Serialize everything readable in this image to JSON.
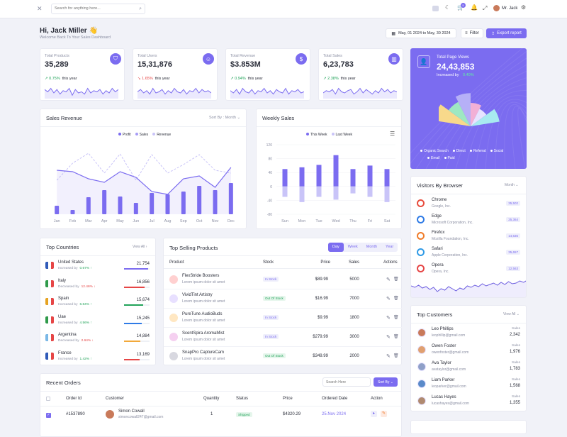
{
  "header": {
    "search_placeholder": "Search for anything here...",
    "notif_count": "5",
    "user_name": "Mr. Jack"
  },
  "welcome": {
    "title": "Hi, Jack Miller 👋",
    "subtitle": "Welcome Back To Your Sales Dashboard",
    "date_range": "May, 01 2024 to May, 30 2024",
    "filter_label": "Filter",
    "export_label": "Export report"
  },
  "stats": [
    {
      "label": "Total Products",
      "value": "35,289",
      "change": "0.75%",
      "dir": "up",
      "period": "this year",
      "icon": "bag-icon"
    },
    {
      "label": "Total Users",
      "value": "15,31,876",
      "change": "1.65%",
      "dir": "down",
      "period": "this year",
      "icon": "user-icon"
    },
    {
      "label": "Total Revenue",
      "value": "$3.853M",
      "change": "0.94%",
      "dir": "up",
      "period": "this year",
      "icon": "dollar-icon"
    },
    {
      "label": "Total Sales",
      "value": "6,23,783",
      "change": "2.38%",
      "dir": "up",
      "period": "this year",
      "icon": "chart-icon"
    }
  ],
  "page_views": {
    "label": "Total Page Views",
    "value": "24,43,853",
    "increased_by": "Increased by",
    "change": "0.40%",
    "legend": [
      "Organic Search",
      "Direct",
      "Referral",
      "Social",
      "Email",
      "Paid"
    ]
  },
  "sales_revenue": {
    "title": "Sales Revenue",
    "sort_label": "Sort By :",
    "sort_value": "Month",
    "chart_data": {
      "type": "bar",
      "categories": [
        "Jan",
        "Feb",
        "Mar",
        "Apr",
        "May",
        "Jun",
        "Jul",
        "Aug",
        "Sep",
        "Oct",
        "Nov",
        "Dec"
      ],
      "series": [
        {
          "name": "Profit",
          "values": [
            12,
            6,
            24,
            34,
            25,
            16,
            30,
            28,
            32,
            40,
            34,
            44
          ]
        },
        {
          "name": "Sales",
          "values": [
            62,
            60,
            50,
            45,
            60,
            52,
            32,
            28,
            50,
            54,
            38,
            66
          ]
        },
        {
          "name": "Revenue",
          "values": [
            48,
            72,
            86,
            58,
            85,
            48,
            84,
            58,
            70,
            84,
            62,
            58
          ]
        }
      ]
    }
  },
  "weekly_sales": {
    "title": "Weekly Sales",
    "chart_data": {
      "type": "bar",
      "categories": [
        "Sun",
        "Mon",
        "Tue",
        "Wed",
        "Thu",
        "Fri",
        "Sat"
      ],
      "ylim": [
        -80,
        120
      ],
      "yticks": [
        "120",
        "80",
        "40",
        "0",
        "-40",
        "-80"
      ],
      "series": [
        {
          "name": "This Week",
          "values": [
            50,
            55,
            62,
            90,
            50,
            60,
            50
          ]
        },
        {
          "name": "Last Week",
          "values": [
            -30,
            -45,
            -30,
            -38,
            -20,
            -30,
            -45
          ]
        }
      ]
    }
  },
  "browsers": {
    "title": "Visitors By Browser",
    "period": "Month",
    "items": [
      {
        "name": "Chrome",
        "company": "Google, Inc.",
        "value": "35,502"
      },
      {
        "name": "Edge",
        "company": "Microsoft Corporation, Inc.",
        "value": "25,364"
      },
      {
        "name": "Firefox",
        "company": "Mozilla Foundation, Inc.",
        "value": "14,635"
      },
      {
        "name": "Safari",
        "company": "Apple Corporation, Inc.",
        "value": "35,657"
      },
      {
        "name": "Opera",
        "company": "Opera, Inc.",
        "value": "12,563"
      }
    ]
  },
  "countries": {
    "title": "Top Countries",
    "view_all": "View All",
    "items": [
      {
        "name": "United States",
        "status": "Increased by",
        "change": "0.67%",
        "dir": "up",
        "value": "21,754",
        "color": "#7b6cf0",
        "fill": 0.95
      },
      {
        "name": "Italy",
        "status": "Decreased by",
        "change": "12.46%",
        "dir": "down",
        "value": "16,856",
        "color": "#e64646",
        "fill": 0.8
      },
      {
        "name": "Spain",
        "status": "Increased by",
        "change": "6.84%",
        "dir": "up",
        "value": "15,674",
        "color": "#22a35a",
        "fill": 0.75
      },
      {
        "name": "Uae",
        "status": "Increased by",
        "change": "4.56%",
        "dir": "up",
        "value": "15,245",
        "color": "#2f7be6",
        "fill": 0.7
      },
      {
        "name": "Argentina",
        "status": "Decreased by",
        "change": "2.64%",
        "dir": "down",
        "value": "14,884",
        "color": "#f2a93b",
        "fill": 0.65
      },
      {
        "name": "France",
        "status": "Increased by",
        "change": "1.42%",
        "dir": "up",
        "value": "13,169",
        "color": "#e64646",
        "fill": 0.6
      }
    ]
  },
  "products": {
    "title": "Top Selling Products",
    "tabs": [
      "Day",
      "Week",
      "Month",
      "Year"
    ],
    "columns": [
      "Product",
      "Stock",
      "Price",
      "Sales",
      "Actions"
    ],
    "rows": [
      {
        "name": "FlexStride Boosters",
        "desc": "Lorem ipsum dolor sit amet",
        "stock": "In Stock",
        "stock_type": "in",
        "price": "$89.99",
        "sales": "5000"
      },
      {
        "name": "VividTint Artistry",
        "desc": "Lorem ipsum dolor sit amet",
        "stock": "Out Of Stock",
        "stock_type": "out",
        "price": "$16.99",
        "sales": "7000"
      },
      {
        "name": "PureTune AudioBuds",
        "desc": "Lorem ipsum dolor sit amet",
        "stock": "In Stock",
        "stock_type": "in",
        "price": "$9.99",
        "sales": "1800"
      },
      {
        "name": "ScentSpira AromaMist",
        "desc": "Lorem ipsum dolor sit amet",
        "stock": "In Stock",
        "stock_type": "in",
        "price": "$279.99",
        "sales": "3000"
      },
      {
        "name": "SnapPro CaptureCam",
        "desc": "Lorem ipsum dolor sit amet",
        "stock": "Out Of Stock",
        "stock_type": "out",
        "price": "$349.99",
        "sales": "2000"
      }
    ]
  },
  "customers": {
    "title": "Top Customers",
    "view_all": "View All",
    "items": [
      {
        "name": "Leo Phillips",
        "email": "leophillip@gmail.com",
        "label": "Sales",
        "value": "2,342"
      },
      {
        "name": "Owen Foster",
        "email": "owenfoster@gmail.com",
        "label": "Sales",
        "value": "1,976"
      },
      {
        "name": "Ava Taylor",
        "email": "avataylor@gmail.com",
        "label": "Sales",
        "value": "1,783"
      },
      {
        "name": "Liam Parker",
        "email": "leoparker@gmail.com",
        "label": "Sales",
        "value": "1,568"
      },
      {
        "name": "Lucas Hayes",
        "email": "lucashayes@gmail.com",
        "label": "Sales",
        "value": "1,355"
      }
    ]
  },
  "orders": {
    "title": "Recent Orders",
    "search_placeholder": "Search Here",
    "sort_label": "Sort By",
    "columns": [
      "Order Id",
      "Customer",
      "Quantity",
      "Status",
      "Price",
      "Ordered Date",
      "Action"
    ],
    "rows": [
      {
        "id": "#1537890",
        "customer": "Simon Cowall",
        "email": "simoncowall247@gmail.com",
        "quantity": "1",
        "status": "Shipped",
        "price": "$4320.29",
        "date": "25.Nov 2024"
      }
    ]
  }
}
